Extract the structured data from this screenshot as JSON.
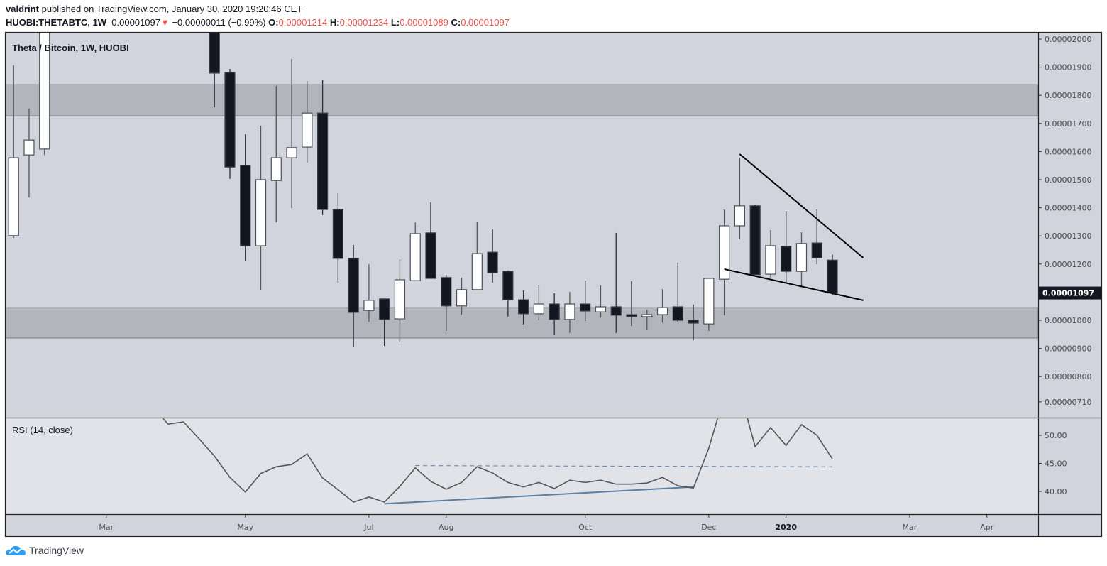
{
  "header": {
    "author": "valdrint",
    "published": "published on TradingView.com, January 30, 2020 19:20:46 CET",
    "symbol": "HUOBI:THETABTC, 1W",
    "last": "0.00001097",
    "change": "−0.00000011 (−0.99%)",
    "direction_icon": "triangle-down-icon",
    "open_label": "O:",
    "open": "0.00001214",
    "high_label": "H:",
    "high": "0.00001234",
    "low_label": "L:",
    "low": "0.00001089",
    "close_label": "C:",
    "close": "0.00001097"
  },
  "logo": {
    "text": "TradingView",
    "icon": "tradingview-cloud-icon"
  },
  "colors": {
    "pane_bg": "#d1d4dc",
    "rsi_bg": "#e1e3e8",
    "zone": "#b3b5bc",
    "down": "#131722",
    "up": "#ffffff",
    "down_text": "#f05350",
    "trendline": "#000000",
    "rsi_line": "#555555",
    "rsi_support": "#5b7fa3"
  },
  "chart_data": [
    {
      "type": "candlestick",
      "title": "Theta / Bitcoin, 1W, HUOBI",
      "y_scale": "linear",
      "ylim": [
        6.7e-06,
        2.01e-05
      ],
      "grid": false,
      "columns": [
        "week",
        "open",
        "high",
        "low",
        "close"
      ],
      "candles": [
        [
          "2019-01-21",
          1.301e-05,
          1.907e-05,
          1.293e-05,
          1.578e-05
        ],
        [
          "2019-01-28",
          1.588e-05,
          1.753e-05,
          1.437e-05,
          1.641e-05
        ],
        [
          "2019-02-04",
          1.609e-05,
          2.2e-05,
          1.588e-05,
          2.1e-05
        ],
        [
          "2019-04-22",
          2.1e-05,
          2.15e-05,
          1.758e-05,
          1.879e-05
        ],
        [
          "2019-04-29",
          1.881e-05,
          1.894e-05,
          1.503e-05,
          1.545e-05
        ],
        [
          "2019-05-06",
          1.551e-05,
          1.662e-05,
          1.21e-05,
          1.265e-05
        ],
        [
          "2019-05-13",
          1.265e-05,
          1.692e-05,
          1.109e-05,
          1.5e-05
        ],
        [
          "2019-05-20",
          1.497e-05,
          1.833e-05,
          1.348e-05,
          1.578e-05
        ],
        [
          "2019-05-27",
          1.578e-05,
          1.929e-05,
          1.399e-05,
          1.614e-05
        ],
        [
          "2019-06-03",
          1.616e-05,
          1.851e-05,
          1.561e-05,
          1.737e-05
        ],
        [
          "2019-06-10",
          1.737e-05,
          1.854e-05,
          1.374e-05,
          1.394e-05
        ],
        [
          "2019-06-17",
          1.394e-05,
          1.452e-05,
          1.134e-05,
          1.22e-05
        ],
        [
          "2019-06-24",
          1.22e-05,
          1.268e-05,
          9.07e-06,
          1.028e-05
        ],
        [
          "2019-07-01",
          1.035e-05,
          1.199e-05,
          9.95e-06,
          1.071e-05
        ],
        [
          "2019-07-08",
          1.076e-05,
          1.076e-05,
          9.09e-06,
          1.003e-05
        ],
        [
          "2019-07-15",
          1.005e-05,
          1.217e-05,
          9.22e-06,
          1.144e-05
        ],
        [
          "2019-07-22",
          1.141e-05,
          1.348e-05,
          1.141e-05,
          1.308e-05
        ],
        [
          "2019-07-29",
          1.311e-05,
          1.419e-05,
          1.149e-05,
          1.149e-05
        ],
        [
          "2019-08-05",
          1.152e-05,
          1.162e-05,
          9.62e-06,
          1.051e-05
        ],
        [
          "2019-08-12",
          1.051e-05,
          1.152e-05,
          1.02e-05,
          1.109e-05
        ],
        [
          "2019-08-19",
          1.109e-05,
          1.351e-05,
          1.109e-05,
          1.237e-05
        ],
        [
          "2019-08-26",
          1.242e-05,
          1.323e-05,
          1.134e-05,
          1.169e-05
        ],
        [
          "2019-09-02",
          1.174e-05,
          1.177e-05,
          1.013e-05,
          1.073e-05
        ],
        [
          "2019-09-09",
          1.073e-05,
          1.106e-05,
          9.85e-06,
          1.023e-05
        ],
        [
          "2019-09-16",
          1.023e-05,
          1.126e-05,
          1e-05,
          1.058e-05
        ],
        [
          "2019-09-23",
          1.058e-05,
          1.096e-05,
          9.47e-06,
          1.003e-05
        ],
        [
          "2019-09-30",
          1.003e-05,
          1.101e-05,
          9.55e-06,
          1.058e-05
        ],
        [
          "2019-10-07",
          1.058e-05,
          1.141e-05,
          9.97e-06,
          1.033e-05
        ],
        [
          "2019-10-14",
          1.03e-05,
          1.124e-05,
          1.01e-05,
          1.048e-05
        ],
        [
          "2019-10-21",
          1.048e-05,
          1.311e-05,
          9.55e-06,
          1.018e-05
        ],
        [
          "2019-10-28",
          1.02e-05,
          1.139e-05,
          9.8e-06,
          1.013e-05
        ],
        [
          "2019-11-04",
          1.013e-05,
          1.038e-05,
          9.67e-06,
          1.02e-05
        ],
        [
          "2019-11-11",
          1.02e-05,
          1.111e-05,
          9.92e-06,
          1.045e-05
        ],
        [
          "2019-11-18",
          1.048e-05,
          1.205e-05,
          9.95e-06,
          1e-05
        ],
        [
          "2019-11-25",
          1e-05,
          1.056e-05,
          9.29e-06,
          9.9e-06
        ],
        [
          "2019-12-02",
          9.87e-06,
          1.149e-05,
          9.62e-06,
          1.149e-05
        ],
        [
          "2019-12-09",
          1.146e-05,
          1.394e-05,
          1.018e-05,
          1.336e-05
        ],
        [
          "2019-12-16",
          1.336e-05,
          1.578e-05,
          1.288e-05,
          1.407e-05
        ],
        [
          "2019-12-23",
          1.407e-05,
          1.412e-05,
          1.162e-05,
          1.162e-05
        ],
        [
          "2019-12-30",
          1.164e-05,
          1.321e-05,
          1.152e-05,
          1.265e-05
        ],
        [
          "2020-01-06",
          1.263e-05,
          1.389e-05,
          1.134e-05,
          1.174e-05
        ],
        [
          "2020-01-13",
          1.174e-05,
          1.313e-05,
          1.121e-05,
          1.273e-05
        ],
        [
          "2020-01-20",
          1.275e-05,
          1.394e-05,
          1.199e-05,
          1.222e-05
        ],
        [
          "2020-01-27",
          1.214e-05,
          1.234e-05,
          1.089e-05,
          1.097e-05
        ]
      ],
      "zones": [
        {
          "from": 1.727e-05,
          "to": 1.838e-05
        },
        {
          "from": 9.37e-06,
          "to": 1.045e-05
        }
      ],
      "trendlines": [
        {
          "points": [
            [
              "2019-12-16",
              1.591e-05
            ],
            [
              "2020-02-10",
              1.222e-05
            ]
          ]
        },
        {
          "points": [
            [
              "2019-12-09",
              1.182e-05
            ],
            [
              "2020-02-10",
              1.071e-05
            ]
          ]
        }
      ],
      "y_ticks": [
        "0.00002000",
        "0.00001900",
        "0.00001800",
        "0.00001700",
        "0.00001600",
        "0.00001500",
        "0.00001400",
        "0.00001300",
        "0.00001200",
        "0.00001000",
        "0.00000900",
        "0.00000800",
        "0.00000710"
      ],
      "last_price_label": "0.00001097",
      "x_ticks": [
        {
          "date": "2019-03-04",
          "label": "Mar",
          "bold": false
        },
        {
          "date": "2019-05-06",
          "label": "May",
          "bold": false
        },
        {
          "date": "2019-07-01",
          "label": "Jul",
          "bold": false
        },
        {
          "date": "2019-08-05",
          "label": "Aug",
          "bold": false
        },
        {
          "date": "2019-10-07",
          "label": "Oct",
          "bold": false
        },
        {
          "date": "2019-12-02",
          "label": "Dec",
          "bold": false
        },
        {
          "date": "2020-01-06",
          "label": "2020",
          "bold": true
        },
        {
          "date": "2020-03-02",
          "label": "Mar",
          "bold": false
        },
        {
          "date": "2020-04-06",
          "label": "Apr",
          "bold": false
        }
      ]
    },
    {
      "type": "line",
      "title": "RSI (14, close)",
      "ylim": [
        36.1,
        53.3
      ],
      "x": [
        "2019-03-25",
        "2019-04-01",
        "2019-04-08",
        "2019-04-15",
        "2019-04-22",
        "2019-04-29",
        "2019-05-06",
        "2019-05-13",
        "2019-05-20",
        "2019-05-27",
        "2019-06-03",
        "2019-06-10",
        "2019-06-17",
        "2019-06-24",
        "2019-07-01",
        "2019-07-08",
        "2019-07-15",
        "2019-07-22",
        "2019-07-29",
        "2019-08-05",
        "2019-08-12",
        "2019-08-19",
        "2019-08-26",
        "2019-09-02",
        "2019-09-09",
        "2019-09-16",
        "2019-09-23",
        "2019-09-30",
        "2019-10-07",
        "2019-10-14",
        "2019-10-21",
        "2019-10-28",
        "2019-11-04",
        "2019-11-11",
        "2019-11-18",
        "2019-11-25",
        "2019-12-02",
        "2019-12-09",
        "2019-12-16",
        "2019-12-23",
        "2019-12-30",
        "2020-01-06",
        "2020-01-13",
        "2020-01-20",
        "2020-01-27"
      ],
      "values": [
        55.0,
        52.0,
        52.4,
        49.4,
        46.3,
        42.5,
        39.9,
        43.2,
        44.4,
        44.8,
        46.7,
        42.4,
        40.3,
        38.1,
        39.0,
        38.1,
        40.9,
        44.2,
        41.8,
        40.4,
        41.6,
        44.4,
        43.3,
        41.6,
        40.8,
        41.6,
        40.5,
        42.0,
        41.6,
        42.0,
        41.3,
        41.3,
        41.5,
        42.5,
        41.0,
        40.6,
        47.7,
        57.0,
        58.0,
        48.0,
        51.4,
        48.2,
        51.9,
        50.0,
        45.8
      ],
      "lines": [
        {
          "style": "solid",
          "points": [
            [
              "2019-07-08",
              37.8
            ],
            [
              "2019-11-25",
              40.8
            ]
          ]
        },
        {
          "style": "dashed",
          "points": [
            [
              "2019-07-22",
              44.6
            ],
            [
              "2020-01-27",
              44.4
            ]
          ]
        }
      ],
      "y_ticks": [
        "50.00",
        "45.00",
        "40.00"
      ]
    }
  ]
}
